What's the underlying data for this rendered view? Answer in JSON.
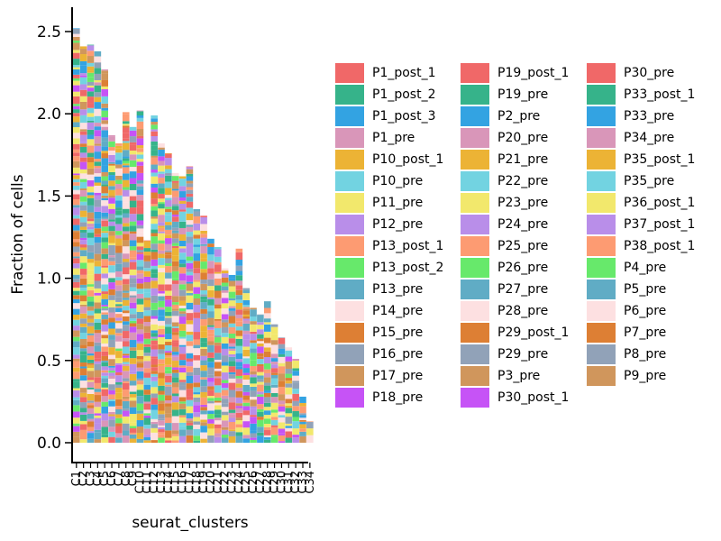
{
  "chart_data": {
    "type": "bar",
    "stacked": true,
    "xlabel": "seurat_clusters",
    "ylabel": "Fraction of cells",
    "ylim": [
      0,
      2.6
    ],
    "yticks": [
      0.0,
      0.5,
      1.0,
      1.5,
      2.0,
      2.5
    ],
    "ytick_labels": [
      "0.0",
      "0.5",
      "1.0",
      "1.5",
      "2.0",
      "2.5"
    ],
    "categories": [
      "C1",
      "C2",
      "C3",
      "C4",
      "C5",
      "C6",
      "C7",
      "C8",
      "C9",
      "C10",
      "C11",
      "C12",
      "C13",
      "C14",
      "C15",
      "C16",
      "C17",
      "C18",
      "C19",
      "C20",
      "C21",
      "C22",
      "C23",
      "C24",
      "C25",
      "C26",
      "C27",
      "C28",
      "C29",
      "C30",
      "C31",
      "C32",
      "C33",
      "C34"
    ],
    "totals": [
      2.52,
      2.41,
      2.42,
      2.38,
      2.27,
      1.87,
      1.82,
      2.01,
      1.92,
      2.02,
      1.23,
      1.99,
      1.82,
      1.76,
      1.64,
      1.62,
      1.68,
      1.42,
      1.38,
      1.24,
      1.19,
      1.06,
      1.02,
      1.18,
      0.94,
      0.82,
      0.78,
      0.86,
      0.72,
      0.64,
      0.58,
      0.51,
      0.28,
      0.13
    ],
    "legend": {
      "placement": "right",
      "ncol": 3,
      "entries": [
        "P1_post_1",
        "P1_post_2",
        "P1_post_3",
        "P1_pre",
        "P10_post_1",
        "P10_pre",
        "P11_pre",
        "P12_pre",
        "P13_post_1",
        "P13_post_2",
        "P13_pre",
        "P14_pre",
        "P15_pre",
        "P16_pre",
        "P17_pre",
        "P18_pre",
        "P19_post_1",
        "P19_pre",
        "P2_pre",
        "P20_pre",
        "P21_pre",
        "P22_pre",
        "P23_pre",
        "P24_pre",
        "P25_pre",
        "P26_pre",
        "P27_pre",
        "P28_pre",
        "P29_post_1",
        "P29_pre",
        "P3_pre",
        "P30_post_1",
        "P30_pre",
        "P33_post_1",
        "P33_pre",
        "P34_pre",
        "P35_post_1",
        "P35_pre",
        "P36_post_1",
        "P37_post_1",
        "P38_post_1",
        "P4_pre",
        "P5_pre",
        "P6_pre",
        "P7_pre",
        "P8_pre",
        "P9_pre"
      ],
      "colors": [
        "#f06868",
        "#36b38a",
        "#33a3e2",
        "#d996b9",
        "#ecb335",
        "#72d3e1",
        "#f2e86c",
        "#b98ee9",
        "#fd9b72",
        "#67e96b",
        "#60acc5",
        "#fde0e1",
        "#dd7f34",
        "#91a2b8",
        "#d0965c",
        "#c653f6",
        "#f06868",
        "#36b38a",
        "#33a3e2",
        "#d996b9",
        "#ecb335",
        "#72d3e1",
        "#f2e86c",
        "#b98ee9",
        "#fd9b72",
        "#67e96b",
        "#60acc5",
        "#fde0e1",
        "#dd7f34",
        "#91a2b8",
        "#d0965c",
        "#c653f6",
        "#f06868",
        "#36b38a",
        "#33a3e2",
        "#d996b9",
        "#ecb335",
        "#72d3e1",
        "#f2e86c",
        "#b98ee9",
        "#fd9b72",
        "#67e96b",
        "#60acc5",
        "#fde0e1",
        "#dd7f34",
        "#91a2b8",
        "#d0965c"
      ]
    }
  }
}
